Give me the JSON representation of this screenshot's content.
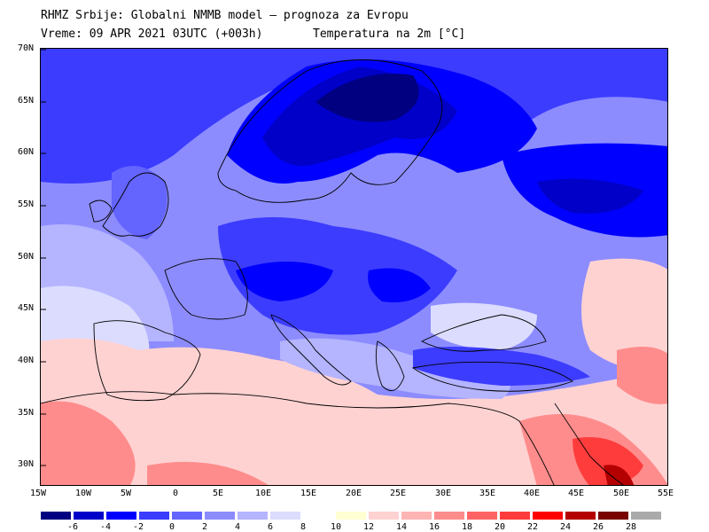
{
  "header": {
    "line1": "RHMZ Srbije: Globalni NMMB model — prognoza za Evropu",
    "line2": "Vreme: 09 APR 2021 03UTC (+003h)",
    "line3": "Temperatura na 2m [°C]"
  },
  "map": {
    "projection": "lat-lon",
    "lon_range": [
      -15,
      55
    ],
    "lat_range": [
      28,
      70
    ],
    "lat_labels": [
      "70N",
      "65N",
      "60N",
      "55N",
      "50N",
      "45N",
      "40N",
      "35N",
      "30N"
    ],
    "lon_labels": [
      "15W",
      "10W",
      "5W",
      "0",
      "5E",
      "10E",
      "15E",
      "20E",
      "25E",
      "30E",
      "35E",
      "40E",
      "45E",
      "50E",
      "55E"
    ]
  },
  "legend": {
    "labels": [
      "-6",
      "-4",
      "-2",
      "0",
      "2",
      "4",
      "6",
      "8",
      "10",
      "12",
      "14",
      "16",
      "18",
      "20",
      "22",
      "24",
      "26",
      "28"
    ],
    "colors": [
      "#000080",
      "#0000c8",
      "#0000ff",
      "#3c3cff",
      "#6464ff",
      "#8c8cff",
      "#b4b4ff",
      "#dcdcff",
      "#ffffff",
      "#ffffd2",
      "#ffd2d2",
      "#ffb4b4",
      "#ff8c8c",
      "#ff6464",
      "#ff3c3c",
      "#ff0000",
      "#b40000",
      "#780000",
      "#aaaaaa"
    ]
  }
}
